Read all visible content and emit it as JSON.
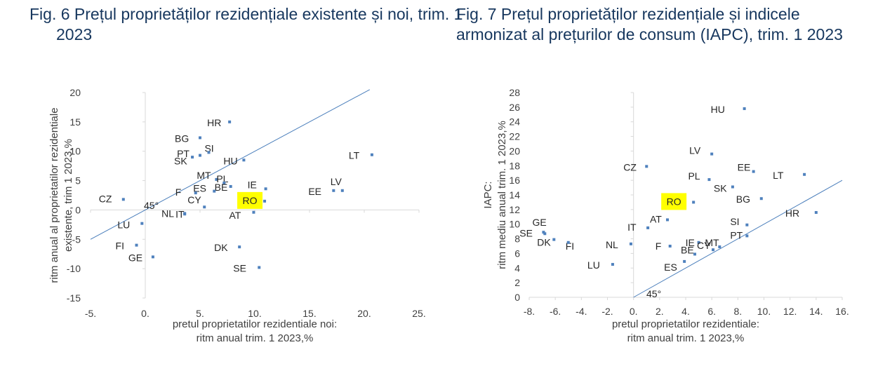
{
  "figures": [
    {
      "title": "Fig. 6 Prețul proprietăților rezidențiale existente și noi, trim. 1 2023"
    },
    {
      "title": "Fig. 7 Prețul proprietăților rezidențiale și indicele armonizat al prețurilor de consum (IAPC), trim. 1 2023"
    }
  ],
  "chart_data": [
    {
      "type": "scatter",
      "xlabel": [
        "pretul proprietatilor rezidentiale noi:",
        "ritm anual trim. 1 2023,%"
      ],
      "ylabel": [
        "ritm  anual al proprietatilor rezidentiale",
        "existente, trim 1 2023,%"
      ],
      "xlim": [
        -5,
        25
      ],
      "ylim": [
        -15,
        20
      ],
      "x_ticks": [
        -5,
        0,
        5,
        10,
        15,
        20,
        25
      ],
      "x_tick_labels": [
        "-5.",
        "0.",
        "5.",
        "10.",
        "15.",
        "20.",
        "25."
      ],
      "y_ticks": [
        -15,
        -10,
        -5,
        0,
        5,
        10,
        15,
        20
      ],
      "y_tick_labels": [
        "-15",
        "-10",
        "-5",
        "0",
        "5",
        "10",
        "15",
        "20"
      ],
      "reference_line": {
        "label": "45°",
        "from": [
          -5,
          -5
        ],
        "to": [
          20.5,
          20.5
        ]
      },
      "highlight_color": "#ffff00",
      "marker_color": "#4f81bd",
      "points": [
        {
          "label": "HR",
          "x": 7.7,
          "y": 15.0
        },
        {
          "label": "BG",
          "x": 5.0,
          "y": 12.3
        },
        {
          "label": "SI",
          "x": 5.8,
          "y": 9.8
        },
        {
          "label": "PT",
          "x": 4.3,
          "y": 9.0
        },
        {
          "label": "SK",
          "x": 5.0,
          "y": 9.3
        },
        {
          "label": "HU",
          "x": 9.0,
          "y": 8.5
        },
        {
          "label": "LT",
          "x": 20.7,
          "y": 9.4
        },
        {
          "label": "MT",
          "x": 6.5,
          "y": 5.2
        },
        {
          "label": "PL",
          "x": 7.2,
          "y": 4.6
        },
        {
          "label": "BE",
          "x": 7.8,
          "y": 4.0
        },
        {
          "label": "ES",
          "x": 6.3,
          "y": 3.2
        },
        {
          "label": "F",
          "x": 4.6,
          "y": 2.9
        },
        {
          "label": "IE",
          "x": 11.0,
          "y": 3.6
        },
        {
          "label": "LV",
          "x": 18.0,
          "y": 3.3
        },
        {
          "label": "EE",
          "x": 17.2,
          "y": 3.3
        },
        {
          "label": "CY",
          "x": 5.4,
          "y": 0.5
        },
        {
          "label": "IT",
          "x": 3.6,
          "y": -0.6
        },
        {
          "label": "NL",
          "x": 3.6,
          "y": -0.7
        },
        {
          "label": "RO",
          "x": 10.9,
          "y": 1.5,
          "highlight": true
        },
        {
          "label": "AT",
          "x": 9.9,
          "y": -0.4
        },
        {
          "label": "CZ",
          "x": -2.0,
          "y": 1.8
        },
        {
          "label": "LU",
          "x": -0.3,
          "y": -2.3
        },
        {
          "label": "FI",
          "x": -0.8,
          "y": -6.0
        },
        {
          "label": "GE",
          "x": 0.7,
          "y": -8.0
        },
        {
          "label": "DK",
          "x": 8.6,
          "y": -6.3
        },
        {
          "label": "SE",
          "x": 10.4,
          "y": -9.8
        }
      ]
    },
    {
      "type": "scatter",
      "xlabel": [
        "pretul proprietatilor rezidentiale:",
        "ritm anual trim. 1 2023,%"
      ],
      "ylabel": [
        "IAPC:",
        "ritm mediu anual trim. 1 2023,%"
      ],
      "xlim": [
        -8,
        16
      ],
      "ylim": [
        0,
        28
      ],
      "x_ticks": [
        -8,
        -6,
        -4,
        -2,
        0,
        2,
        4,
        6,
        8,
        10,
        12,
        14,
        16
      ],
      "x_tick_labels": [
        "-8.",
        "-6.",
        "-4.",
        "-2.",
        "0.",
        "2.",
        "4.",
        "6.",
        "8.",
        "10.",
        "12.",
        "14.",
        "16."
      ],
      "y_ticks": [
        0,
        2,
        4,
        6,
        8,
        10,
        12,
        14,
        16,
        18,
        20,
        22,
        24,
        26,
        28
      ],
      "y_tick_labels": [
        "0",
        "2",
        "4",
        "6",
        "8",
        "10",
        "12",
        "14",
        "16",
        "18",
        "20",
        "22",
        "24",
        "26",
        "28"
      ],
      "reference_line": {
        "label": "45°",
        "from": [
          0,
          0
        ],
        "to": [
          16,
          16
        ]
      },
      "highlight_color": "#ffff00",
      "marker_color": "#4f81bd",
      "points": [
        {
          "label": "HU",
          "x": 8.5,
          "y": 25.8
        },
        {
          "label": "LV",
          "x": 6.0,
          "y": 19.6
        },
        {
          "label": "CZ",
          "x": 1.0,
          "y": 17.9
        },
        {
          "label": "EE",
          "x": 9.2,
          "y": 17.2
        },
        {
          "label": "LT",
          "x": 13.1,
          "y": 16.8
        },
        {
          "label": "PL",
          "x": 5.8,
          "y": 16.1
        },
        {
          "label": "SK",
          "x": 7.6,
          "y": 15.1
        },
        {
          "label": "BG",
          "x": 9.8,
          "y": 13.5
        },
        {
          "label": "RO",
          "x": 4.6,
          "y": 13.0,
          "highlight": true
        },
        {
          "label": "HR",
          "x": 14.0,
          "y": 11.6
        },
        {
          "label": "AT",
          "x": 2.6,
          "y": 10.6
        },
        {
          "label": "IT",
          "x": 1.1,
          "y": 9.5
        },
        {
          "label": "SI",
          "x": 8.7,
          "y": 9.9
        },
        {
          "label": "PT",
          "x": 8.7,
          "y": 8.4
        },
        {
          "label": "MT",
          "x": 6.6,
          "y": 6.9
        },
        {
          "label": "IE",
          "x": 5.0,
          "y": 7.5
        },
        {
          "label": "F",
          "x": 2.8,
          "y": 7.0
        },
        {
          "label": "CY",
          "x": 6.1,
          "y": 6.5
        },
        {
          "label": "BE",
          "x": 4.7,
          "y": 5.9
        },
        {
          "label": "ES",
          "x": 3.9,
          "y": 4.9
        },
        {
          "label": "NL",
          "x": -0.2,
          "y": 7.3
        },
        {
          "label": "LU",
          "x": -1.6,
          "y": 4.5
        },
        {
          "label": "GE",
          "x": -6.9,
          "y": 8.9
        },
        {
          "label": "SE",
          "x": -6.8,
          "y": 8.7
        },
        {
          "label": "DK",
          "x": -6.1,
          "y": 7.9
        },
        {
          "label": "FI",
          "x": -5.0,
          "y": 7.5
        }
      ]
    }
  ]
}
